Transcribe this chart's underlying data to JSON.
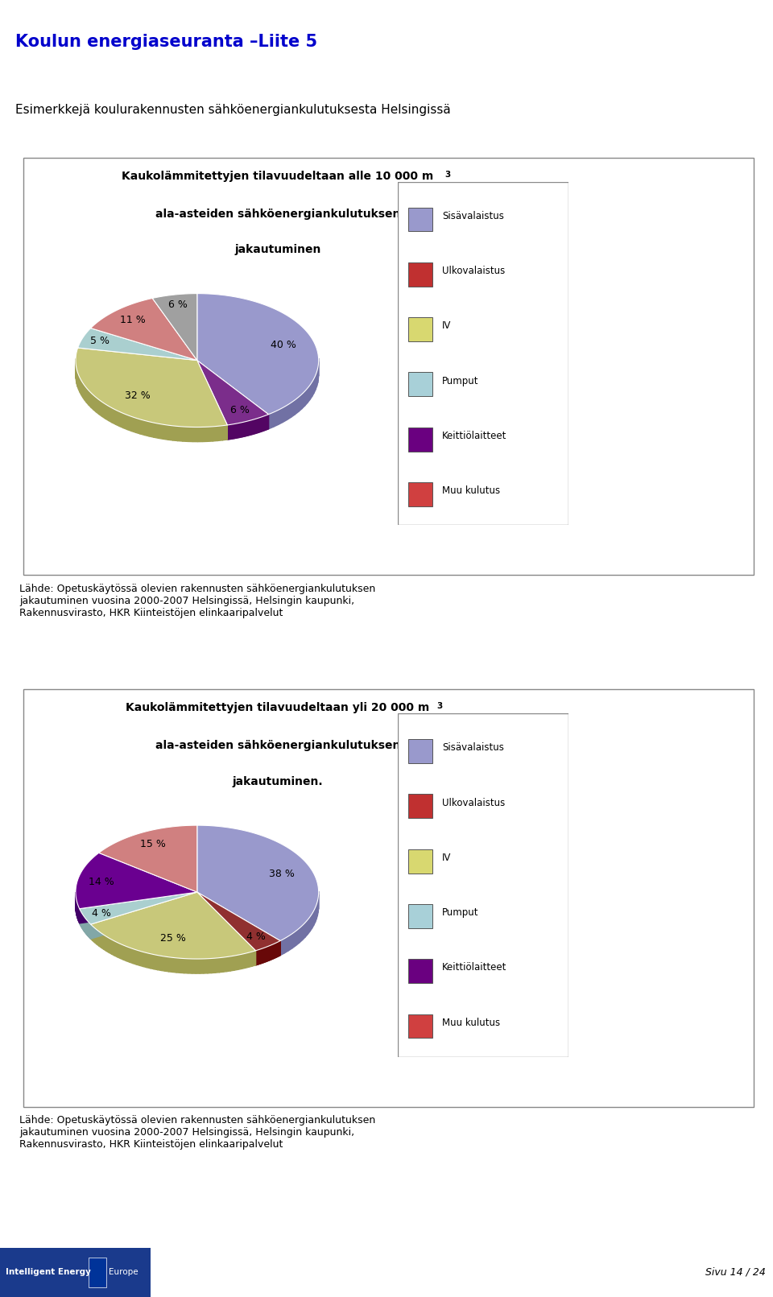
{
  "page_title": "Koulun energiaseuranta –Liite 5",
  "subtitle": "Esimerkkejä koulurakennusten sähköenergiankulutuksesta Helsingissä",
  "chart1": {
    "title_line1": "Kaukolammitettyjen tilavuudeltaan alle 10 000 m",
    "title_line2": "ala-asteiden sähköenergiankulutuksen",
    "title_line3": "jakautuminen",
    "title_superscript": "3",
    "values": [
      40,
      6,
      32,
      5,
      11,
      6
    ],
    "labels": [
      "40 %",
      "6 %",
      "32 %",
      "5 %",
      "11 %",
      "6 %"
    ],
    "pie_colors": [
      "#9999cc",
      "#7b2d8b",
      "#c8c87a",
      "#aacfcf",
      "#d08080",
      "#a0a0a0"
    ],
    "legend_labels": [
      "Sisävalaistus",
      "Ulkovalaistus",
      "IV",
      "Pumput",
      "Keittiölaitteet",
      "Muu kulutus"
    ],
    "legend_colors": [
      "#9999cc",
      "#c03030",
      "#d8d870",
      "#a8d0d8",
      "#6a0080",
      "#d04040"
    ],
    "start_angle": 90
  },
  "chart2": {
    "title_line1": "Kaukolammitettyjen tilavuudeltaan yli 20 000 m",
    "title_line2": "ala-asteiden sähköenergiankulutuksen",
    "title_line3": "jakautuminen.",
    "title_superscript": "3",
    "values": [
      38,
      4,
      25,
      4,
      14,
      15
    ],
    "labels": [
      "38 %",
      "4 %",
      "25 %",
      "4 %",
      "14 %",
      "15 %"
    ],
    "pie_colors": [
      "#9999cc",
      "#903030",
      "#c8c87a",
      "#aacfcf",
      "#6a0090",
      "#d08080"
    ],
    "legend_labels": [
      "Sisävalaistus",
      "Ulkovalaistus",
      "IV",
      "Pumput",
      "Keittiölaitteet",
      "Muu kulutus"
    ],
    "legend_colors": [
      "#9999cc",
      "#c03030",
      "#d8d870",
      "#a8d0d8",
      "#6a0080",
      "#d04040"
    ],
    "start_angle": 90
  },
  "source_text": "Lähde: Opetuskäytössä olevien rakennusten sähköenergiankulutuksen\njakautuminen vuosina 2000-2007 Helsingissä, Helsingin kaupunki,\nRakennusvirasto, HKR Kiinteistöjen elinkaaripalvelut",
  "footer_left": "Intelligent Energy   Europe",
  "footer_right": "Sivu 14 / 24",
  "bg_color": "#ffffff",
  "title_color": "#0000cc",
  "border_color": "#888888"
}
